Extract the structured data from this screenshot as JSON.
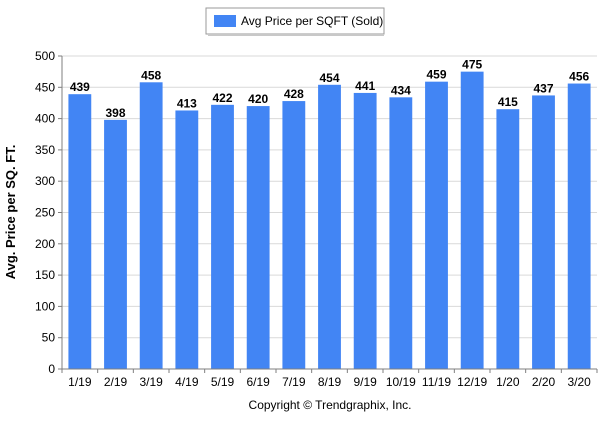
{
  "chart_data": {
    "type": "bar",
    "categories": [
      "1/19",
      "2/19",
      "3/19",
      "4/19",
      "5/19",
      "6/19",
      "7/19",
      "8/19",
      "9/19",
      "10/19",
      "11/19",
      "12/19",
      "1/20",
      "2/20",
      "3/20"
    ],
    "series": [
      {
        "name": "Avg Price per SQFT (Sold)",
        "values": [
          439,
          398,
          458,
          413,
          422,
          420,
          428,
          454,
          441,
          434,
          459,
          475,
          415,
          437,
          456
        ]
      }
    ],
    "ylabel": "Avg. Price per SQ. FT.",
    "ylim": [
      0,
      500
    ],
    "yticks": [
      0,
      50,
      100,
      150,
      200,
      250,
      300,
      350,
      400,
      450,
      500
    ],
    "grid": true,
    "legend": "top-center",
    "bar_color": "#4285F4",
    "footer": "Copyright © Trendgraphix, Inc."
  }
}
